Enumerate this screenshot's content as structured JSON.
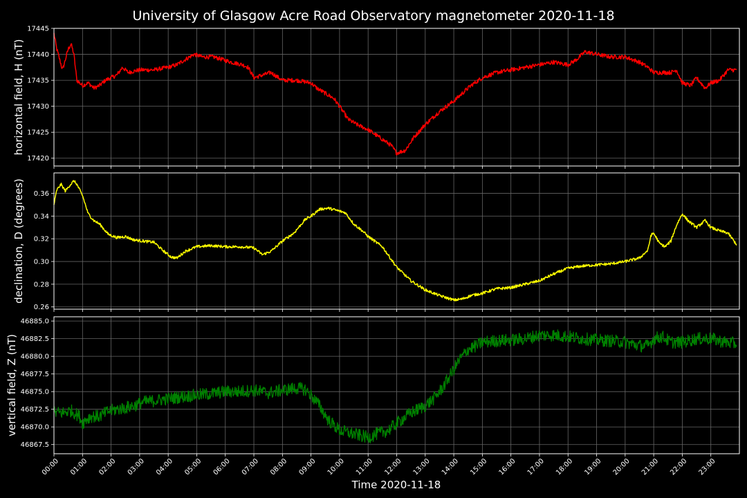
{
  "title": "University of Glasgow Acre Road Observatory magnetometer 2020-11-18",
  "xlabel": "Time 2020-11-18",
  "x_ticks": [
    "00:00",
    "01:00",
    "02:00",
    "03:00",
    "04:00",
    "05:00",
    "06:00",
    "07:00",
    "08:00",
    "09:00",
    "10:00",
    "11:00",
    "12:00",
    "13:00",
    "14:00",
    "15:00",
    "16:00",
    "17:00",
    "18:00",
    "19:00",
    "20:00",
    "21:00",
    "22:00",
    "23:00"
  ],
  "background": "#000000",
  "grid_color": "#666666",
  "chart_data": [
    {
      "type": "line",
      "name": "H",
      "ylabel": "horizontal field, H (nT)",
      "color": "#ff0000",
      "ylim": [
        17418.5,
        17445
      ],
      "yticks": [
        17420,
        17425,
        17430,
        17435,
        17440,
        17445
      ],
      "ytick_labels": [
        "17420",
        "17425",
        "17430",
        "17435",
        "17440",
        "17445"
      ],
      "xlim": [
        0,
        24
      ],
      "grid": true,
      "noise": 0.4,
      "x": [
        0.0,
        0.1,
        0.2,
        0.3,
        0.4,
        0.5,
        0.6,
        0.7,
        0.8,
        0.9,
        1.0,
        1.2,
        1.4,
        1.6,
        1.8,
        2.0,
        2.2,
        2.4,
        2.6,
        3.0,
        3.5,
        4.0,
        4.3,
        4.6,
        4.9,
        5.2,
        5.6,
        5.9,
        6.2,
        6.6,
        6.8,
        7.0,
        7.3,
        7.6,
        8.0,
        8.5,
        9.0,
        9.2,
        9.5,
        9.8,
        10.0,
        10.3,
        10.6,
        11.0,
        11.4,
        11.8,
        12.0,
        12.3,
        12.6,
        13.0,
        13.5,
        14.0,
        14.3,
        14.6,
        15.0,
        15.5,
        16.0,
        16.5,
        17.0,
        17.5,
        18.0,
        18.3,
        18.6,
        19.0,
        19.5,
        20.0,
        20.5,
        20.8,
        21.0,
        21.3,
        21.6,
        21.8,
        22.0,
        22.3,
        22.5,
        22.8,
        23.0,
        23.3,
        23.6,
        23.9
      ],
      "y": [
        17444,
        17441,
        17439,
        17437,
        17439,
        17441,
        17442,
        17440,
        17435,
        17434.5,
        17434,
        17434.5,
        17433.5,
        17434,
        17435,
        17435.5,
        17436,
        17437.5,
        17436.5,
        17437,
        17437,
        17437.5,
        17438,
        17439,
        17440,
        17439.5,
        17439.5,
        17439,
        17438.5,
        17438,
        17437.5,
        17435.5,
        17436,
        17436.5,
        17435,
        17435,
        17434.5,
        17433.5,
        17432.5,
        17431.5,
        17430,
        17427.5,
        17426.5,
        17425.5,
        17424,
        17422.5,
        17421,
        17421.5,
        17424,
        17426.5,
        17429,
        17431,
        17432.5,
        17434,
        17435.5,
        17436.5,
        17437,
        17437.5,
        17438,
        17438.5,
        17438,
        17439,
        17440.5,
        17440,
        17439.5,
        17439.5,
        17438.5,
        17437.5,
        17436.5,
        17436.5,
        17436.5,
        17437,
        17434.5,
        17434,
        17435.5,
        17433.5,
        17434.5,
        17435,
        17437,
        17437
      ]
    },
    {
      "type": "line",
      "name": "D",
      "ylabel": "declination, D (degrees)",
      "color": "#ffff00",
      "ylim": [
        0.258,
        0.378
      ],
      "yticks": [
        0.26,
        0.28,
        0.3,
        0.32,
        0.34,
        0.36
      ],
      "ytick_labels": [
        "0.26",
        "0.28",
        "0.30",
        "0.32",
        "0.34",
        "0.36"
      ],
      "xlim": [
        0,
        24
      ],
      "grid": true,
      "noise": 0.0012,
      "x": [
        0.0,
        0.1,
        0.25,
        0.4,
        0.55,
        0.7,
        0.8,
        1.0,
        1.2,
        1.4,
        1.6,
        1.9,
        2.2,
        2.5,
        2.8,
        3.1,
        3.5,
        3.8,
        4.1,
        4.3,
        4.6,
        5.0,
        5.5,
        6.0,
        6.5,
        7.0,
        7.3,
        7.6,
        8.0,
        8.4,
        8.8,
        9.0,
        9.3,
        9.6,
        9.9,
        10.2,
        10.5,
        10.8,
        11.0,
        11.5,
        12.0,
        12.5,
        13.0,
        13.5,
        14.0,
        14.3,
        14.6,
        15.0,
        15.5,
        16.0,
        16.5,
        17.0,
        17.5,
        18.0,
        18.5,
        19.0,
        19.5,
        20.0,
        20.5,
        20.8,
        20.9,
        21.0,
        21.2,
        21.4,
        21.6,
        21.8,
        22.0,
        22.2,
        22.5,
        22.8,
        23.0,
        23.3,
        23.6,
        23.9
      ],
      "y": [
        0.35,
        0.363,
        0.368,
        0.362,
        0.367,
        0.371,
        0.368,
        0.358,
        0.342,
        0.336,
        0.333,
        0.324,
        0.321,
        0.322,
        0.319,
        0.318,
        0.317,
        0.31,
        0.304,
        0.303,
        0.309,
        0.313,
        0.314,
        0.313,
        0.313,
        0.312,
        0.306,
        0.309,
        0.318,
        0.325,
        0.337,
        0.34,
        0.346,
        0.347,
        0.345,
        0.343,
        0.333,
        0.327,
        0.322,
        0.313,
        0.295,
        0.283,
        0.275,
        0.27,
        0.266,
        0.267,
        0.27,
        0.272,
        0.276,
        0.277,
        0.28,
        0.283,
        0.289,
        0.294,
        0.296,
        0.297,
        0.298,
        0.3,
        0.303,
        0.31,
        0.323,
        0.325,
        0.316,
        0.313,
        0.318,
        0.332,
        0.342,
        0.336,
        0.33,
        0.336,
        0.33,
        0.327,
        0.325,
        0.315
      ]
    },
    {
      "type": "line",
      "name": "Z",
      "ylabel": "vertical field, Z (nT)",
      "color": "#008000",
      "ylim": [
        46866.2,
        46885.6
      ],
      "yticks": [
        46867.5,
        46870.0,
        46872.5,
        46875.0,
        46877.5,
        46880.0,
        46882.5,
        46885.0
      ],
      "ytick_labels": [
        "46867.5",
        "46870.0",
        "46872.5",
        "46875.0",
        "46877.5",
        "46880.0",
        "46882.5",
        "46885.0"
      ],
      "xlim": [
        0,
        24
      ],
      "grid": true,
      "noise": 0.9,
      "x": [
        0.0,
        0.3,
        0.6,
        0.9,
        1.0,
        1.1,
        1.3,
        1.6,
        1.9,
        2.2,
        2.5,
        2.8,
        3.1,
        3.5,
        4.0,
        4.5,
        5.0,
        5.5,
        6.0,
        6.5,
        7.0,
        7.5,
        8.0,
        8.5,
        8.8,
        9.0,
        9.3,
        9.6,
        10.0,
        10.5,
        11.0,
        11.3,
        11.7,
        12.0,
        12.5,
        13.0,
        13.3,
        13.6,
        13.9,
        14.2,
        14.5,
        14.8,
        15.0,
        15.5,
        16.0,
        16.5,
        17.0,
        17.5,
        18.0,
        18.5,
        19.0,
        19.5,
        20.0,
        20.5,
        20.8,
        21.0,
        21.3,
        21.6,
        22.0,
        22.5,
        23.0,
        23.5,
        23.9
      ],
      "y": [
        46872,
        46872,
        46872.3,
        46871.5,
        46870.5,
        46871,
        46871.5,
        46871.5,
        46872.2,
        46872.5,
        46872.7,
        46873,
        46873.5,
        46873.7,
        46874,
        46874.3,
        46874.5,
        46874.7,
        46875,
        46875,
        46875.2,
        46874.8,
        46875.2,
        46875.5,
        46875.3,
        46874.5,
        46873,
        46871,
        46869.5,
        46869,
        46868.5,
        46869,
        46869.5,
        46870.5,
        46872,
        46873,
        46874,
        46875.5,
        46877.5,
        46879.5,
        46881,
        46881.5,
        46882,
        46882.2,
        46882.3,
        46882.5,
        46883,
        46883,
        46882.8,
        46882.5,
        46882.3,
        46882.2,
        46882,
        46881.5,
        46881.5,
        46882.5,
        46882.8,
        46882,
        46882,
        46882.5,
        46882.5,
        46882,
        46881.8
      ]
    }
  ]
}
